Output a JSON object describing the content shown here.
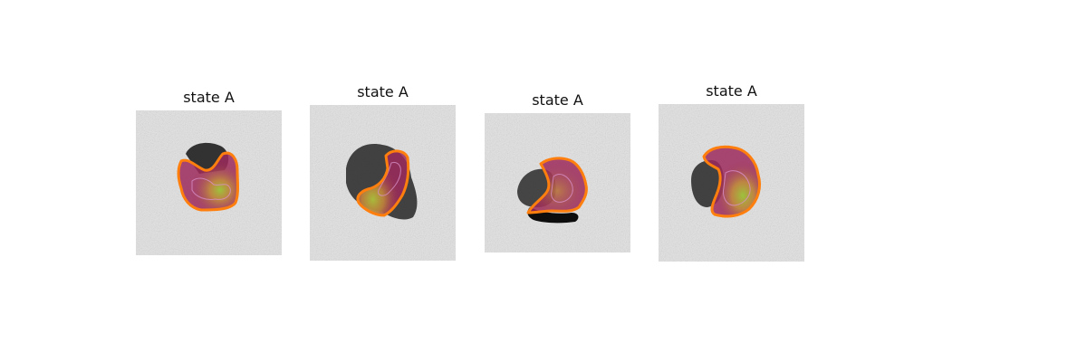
{
  "figure": {
    "panels": [
      {
        "title": "state A"
      },
      {
        "title": "state A"
      },
      {
        "title": "state A"
      },
      {
        "title": "state A"
      }
    ],
    "colors": {
      "background": "#ffffff",
      "noise_gray": "#e2e2e2",
      "cell_dark": "#1a1a1a",
      "overlay_fill": "#9c2a5c",
      "overlay_hot": "#c8a030",
      "contour": "#ff7f0e",
      "inner_contour": "#d890c8"
    }
  }
}
